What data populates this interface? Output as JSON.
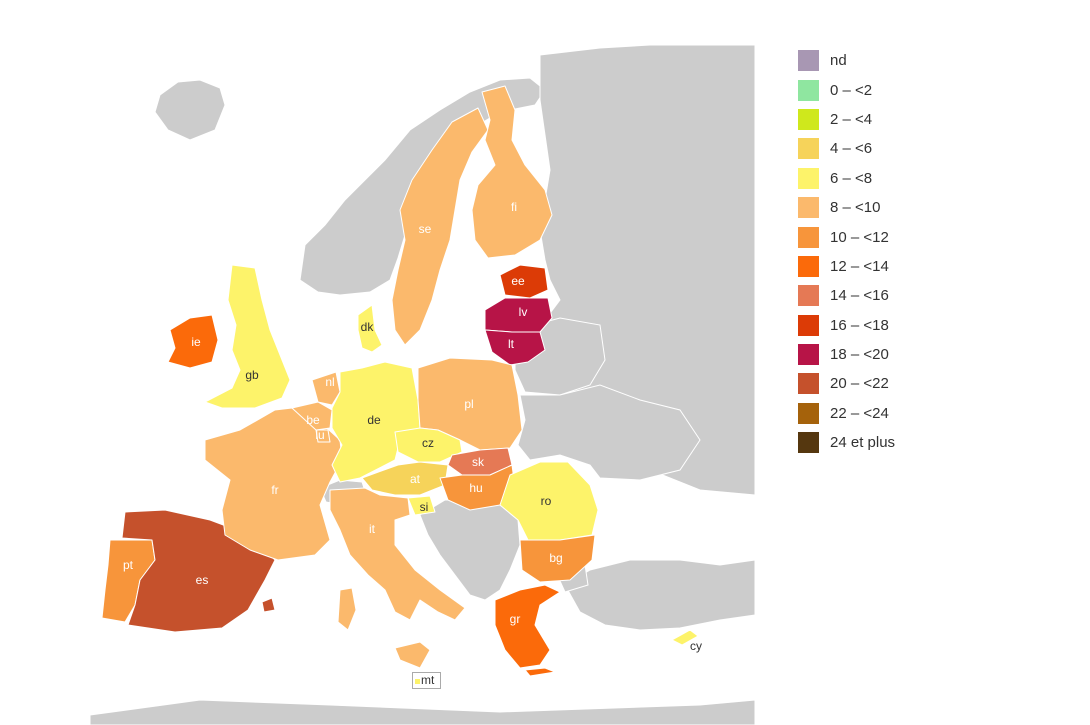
{
  "colors": {
    "no_data_land": "#cccccc",
    "sea": "#ffffff"
  },
  "legend": [
    {
      "label": "nd",
      "color": "#a897b3"
    },
    {
      "label": "0 – <2",
      "color": "#8fe6a0"
    },
    {
      "label": "2 – <4",
      "color": "#cfe81c"
    },
    {
      "label": "4 – <6",
      "color": "#f6d35a"
    },
    {
      "label": "6 – <8",
      "color": "#fdf36a"
    },
    {
      "label": "8 – <10",
      "color": "#fbb96c"
    },
    {
      "label": "10 – <12",
      "color": "#f7953b"
    },
    {
      "label": "12 – <14",
      "color": "#fb6a0a"
    },
    {
      "label": "14 – <16",
      "color": "#e57955"
    },
    {
      "label": "16 – <18",
      "color": "#dc3b06"
    },
    {
      "label": "18 – <20",
      "color": "#b71447"
    },
    {
      "label": "20 – <22",
      "color": "#c5512c"
    },
    {
      "label": "22 – <24",
      "color": "#a5620b"
    },
    {
      "label": "24 et plus",
      "color": "#55370f"
    }
  ],
  "countries": [
    {
      "code": "ie",
      "label": "ie",
      "class": "12 – <14"
    },
    {
      "code": "gb",
      "label": "gb",
      "class": "6 – <8"
    },
    {
      "code": "pt",
      "label": "pt",
      "class": "10 – <12"
    },
    {
      "code": "es",
      "label": "es",
      "class": "20 – <22"
    },
    {
      "code": "fr",
      "label": "fr",
      "class": "8 – <10"
    },
    {
      "code": "be",
      "label": "be",
      "class": "8 – <10"
    },
    {
      "code": "lu",
      "label": "lu",
      "class": "8 – <10"
    },
    {
      "code": "nl",
      "label": "nl",
      "class": "8 – <10"
    },
    {
      "code": "de",
      "label": "de",
      "class": "6 – <8"
    },
    {
      "code": "dk",
      "label": "dk",
      "class": "6 – <8"
    },
    {
      "code": "se",
      "label": "se",
      "class": "8 – <10"
    },
    {
      "code": "fi",
      "label": "fi",
      "class": "8 – <10"
    },
    {
      "code": "ee",
      "label": "ee",
      "class": "16 – <18"
    },
    {
      "code": "lv",
      "label": "lv",
      "class": "18 – <20"
    },
    {
      "code": "lt",
      "label": "lt",
      "class": "18 – <20"
    },
    {
      "code": "pl",
      "label": "pl",
      "class": "8 – <10"
    },
    {
      "code": "cz",
      "label": "cz",
      "class": "6 – <8"
    },
    {
      "code": "sk",
      "label": "sk",
      "class": "14 – <16"
    },
    {
      "code": "at",
      "label": "at",
      "class": "4 – <6"
    },
    {
      "code": "si",
      "label": "si",
      "class": "6 – <8"
    },
    {
      "code": "hu",
      "label": "hu",
      "class": "10 – <12"
    },
    {
      "code": "ro",
      "label": "ro",
      "class": "6 – <8"
    },
    {
      "code": "bg",
      "label": "bg",
      "class": "10 – <12"
    },
    {
      "code": "it",
      "label": "it",
      "class": "8 – <10"
    },
    {
      "code": "gr",
      "label": "gr",
      "class": "12 – <14"
    },
    {
      "code": "cy",
      "label": "cy",
      "class": "6 – <8"
    },
    {
      "code": "mt",
      "label": "mt",
      "class": "6 – <8"
    }
  ]
}
